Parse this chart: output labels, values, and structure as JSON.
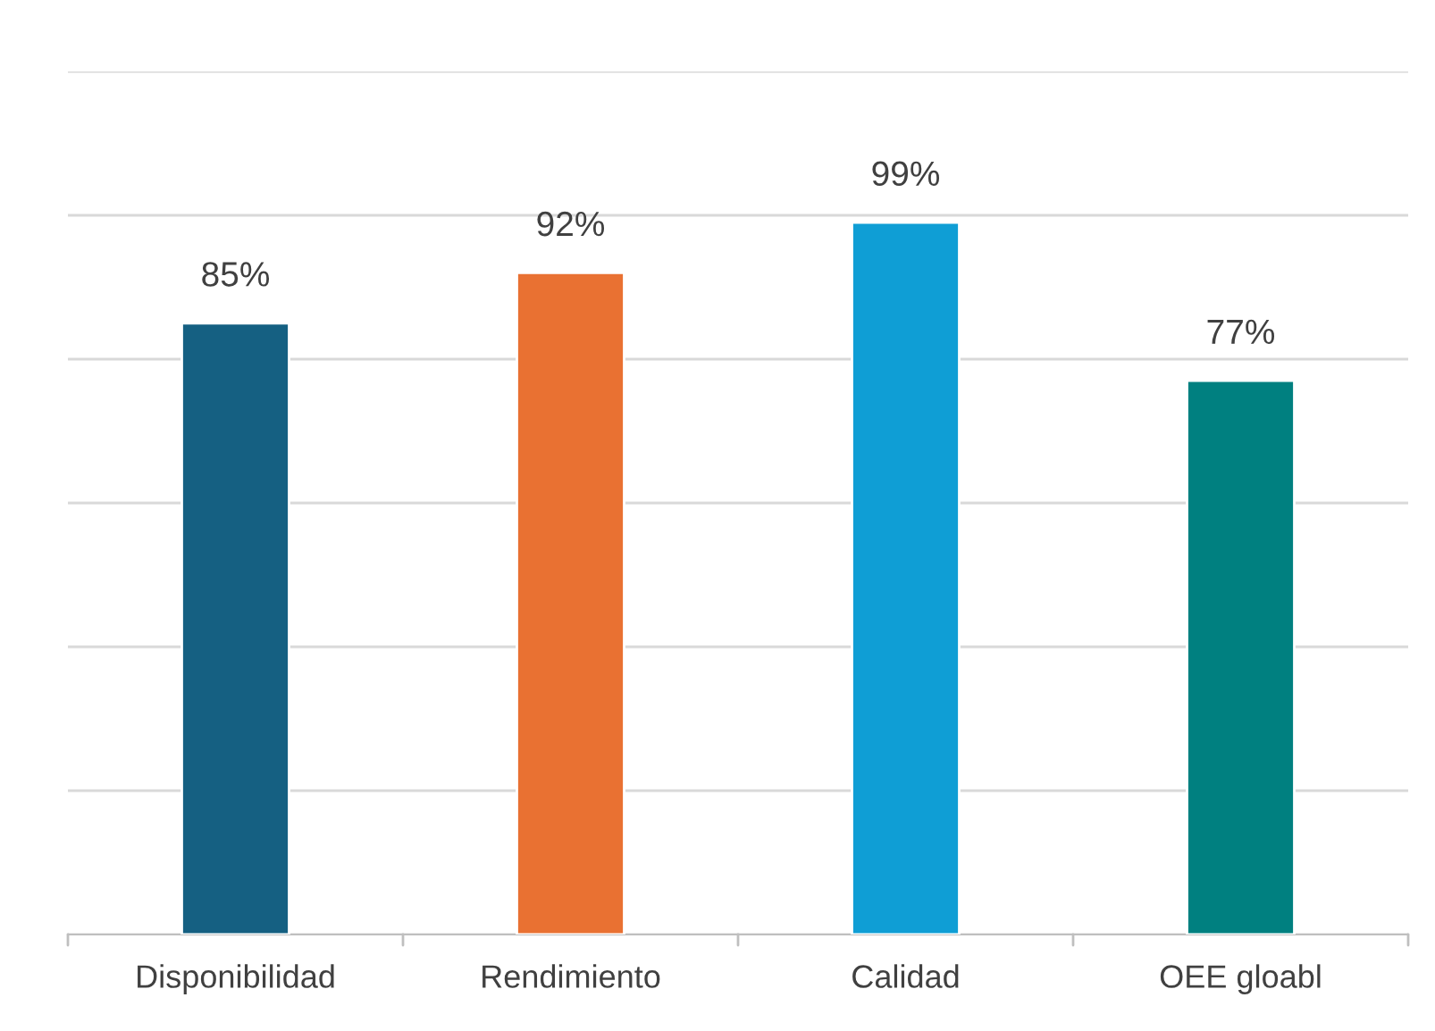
{
  "chart_data": {
    "type": "bar",
    "categories": [
      "Disponibilidad",
      "Rendimiento",
      "Calidad",
      "OEE gloabl"
    ],
    "values": [
      85,
      92,
      99,
      77
    ],
    "colors": [
      "#156082",
      "#e97132",
      "#0f9ed5",
      "#008080"
    ],
    "value_labels": [
      "85%",
      "92%",
      "99%",
      "77%"
    ],
    "ylim": [
      0,
      120
    ],
    "yticks": [
      {
        "value": 0,
        "label": null
      },
      {
        "value": 20,
        "label": null
      },
      {
        "value": 40,
        "label": null
      },
      {
        "value": 60,
        "label": null
      },
      {
        "value": 80,
        "label": null
      },
      {
        "value": 100,
        "label": null
      },
      {
        "value": 120,
        "label": null
      }
    ],
    "tick_labels": "x",
    "grid": "y",
    "legend": false
  }
}
